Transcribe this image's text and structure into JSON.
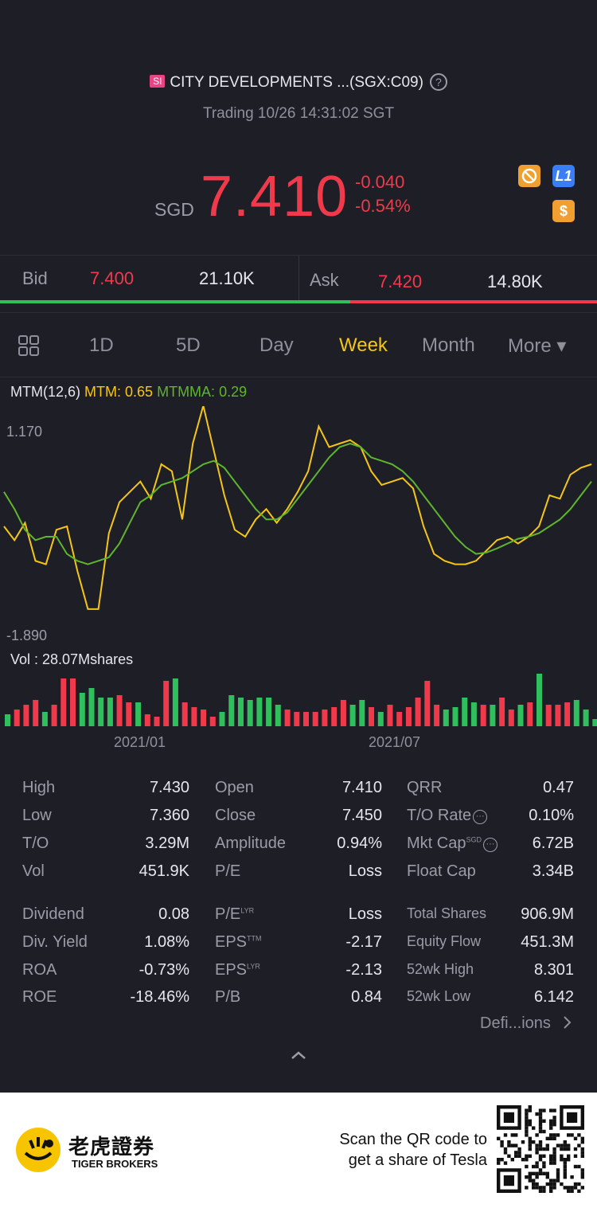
{
  "header": {
    "exchange_badge": "SI",
    "title": "CITY DEVELOPMENTS ...(SGX:C09)",
    "help_glyph": "?",
    "trading_status": "Trading 10/26 14:31:02 SGT"
  },
  "quote": {
    "currency": "SGD",
    "price": "7.410",
    "change": "-0.040",
    "change_pct": "-0.54%",
    "badges": {
      "l1": "L1",
      "dollar": "$"
    }
  },
  "bid_ask": {
    "bid_label": "Bid",
    "bid_price": "7.400",
    "bid_size": "21.10K",
    "ask_label": "Ask",
    "ask_price": "7.420",
    "ask_size": "14.80K",
    "bid_fraction": 0.587
  },
  "tabs": [
    {
      "label": "1D",
      "active": false
    },
    {
      "label": "5D",
      "active": false
    },
    {
      "label": "Day",
      "active": false
    },
    {
      "label": "Week",
      "active": true
    },
    {
      "label": "Month",
      "active": false
    },
    {
      "label": "More ▾",
      "active": false
    }
  ],
  "indicator": {
    "name": "MTM(12,6)",
    "mtm_text": "MTM: 0.65",
    "mtmma_text": "MTMMA: 0.29",
    "y_max_label": "1.170",
    "y_min_label": "-1.890",
    "volume_label": "Vol  : 28.07Mshares",
    "date_labels": [
      "2021/01",
      "2021/07"
    ],
    "colors": {
      "mtm": "#f5c518",
      "mtmma": "#5fb52c",
      "up": "#2fbf5c",
      "down": "#f03a4c"
    }
  },
  "chart_data": {
    "type": "line",
    "series": [
      {
        "name": "MTM",
        "values": [
          -0.4,
          -0.6,
          -0.35,
          -0.9,
          -0.95,
          -0.45,
          -0.4,
          -1.05,
          -1.6,
          -1.6,
          -0.5,
          -0.05,
          0.1,
          0.25,
          0.0,
          0.5,
          0.4,
          -0.3,
          0.8,
          1.35,
          0.7,
          0.05,
          -0.45,
          -0.55,
          -0.3,
          -0.15,
          -0.35,
          -0.15,
          0.1,
          0.4,
          1.05,
          0.75,
          0.8,
          0.85,
          0.75,
          0.4,
          0.2,
          0.25,
          0.3,
          0.15,
          -0.4,
          -0.8,
          -0.9,
          -0.95,
          -0.95,
          -0.9,
          -0.75,
          -0.6,
          -0.55,
          -0.65,
          -0.55,
          -0.4,
          0.05,
          0.0,
          0.35,
          0.45,
          0.5
        ]
      },
      {
        "name": "MTMMA",
        "values": [
          0.1,
          -0.15,
          -0.45,
          -0.6,
          -0.55,
          -0.55,
          -0.8,
          -0.9,
          -0.95,
          -0.9,
          -0.85,
          -0.65,
          -0.35,
          -0.05,
          0.05,
          0.2,
          0.25,
          0.3,
          0.4,
          0.5,
          0.55,
          0.45,
          0.25,
          0.05,
          -0.15,
          -0.3,
          -0.3,
          -0.2,
          0.0,
          0.2,
          0.4,
          0.6,
          0.75,
          0.8,
          0.75,
          0.6,
          0.55,
          0.5,
          0.4,
          0.25,
          0.05,
          -0.15,
          -0.35,
          -0.55,
          -0.7,
          -0.8,
          -0.78,
          -0.72,
          -0.65,
          -0.58,
          -0.55,
          -0.5,
          -0.4,
          -0.3,
          -0.15,
          0.05,
          0.25
        ]
      }
    ],
    "volume": {
      "values": [
        0.25,
        0.35,
        0.45,
        0.55,
        0.3,
        0.45,
        1.0,
        1.0,
        0.7,
        0.8,
        0.6,
        0.6,
        0.65,
        0.5,
        0.5,
        0.25,
        0.2,
        0.95,
        1.0,
        0.5,
        0.4,
        0.35,
        0.2,
        0.3,
        0.65,
        0.6,
        0.55,
        0.6,
        0.6,
        0.45,
        0.35,
        0.3,
        0.3,
        0.3,
        0.35,
        0.4,
        0.55,
        0.45,
        0.55,
        0.4,
        0.3,
        0.45,
        0.3,
        0.4,
        0.6,
        0.95,
        0.45,
        0.35,
        0.4,
        0.6,
        0.5,
        0.45,
        0.45,
        0.6,
        0.35,
        0.45,
        0.5,
        1.1,
        0.45,
        0.45,
        0.5,
        0.55,
        0.35,
        0.15
      ],
      "direction": [
        "up",
        "down",
        "down",
        "down",
        "up",
        "down",
        "down",
        "down",
        "up",
        "up",
        "up",
        "up",
        "down",
        "down",
        "up",
        "down",
        "down",
        "down",
        "up",
        "down",
        "down",
        "down",
        "down",
        "up",
        "up",
        "up",
        "up",
        "up",
        "up",
        "up",
        "down",
        "down",
        "down",
        "down",
        "down",
        "down",
        "down",
        "up",
        "up",
        "down",
        "up",
        "down",
        "down",
        "down",
        "down",
        "down",
        "down",
        "up",
        "up",
        "up",
        "up",
        "down",
        "up",
        "down",
        "down",
        "up",
        "down",
        "up",
        "down",
        "down",
        "down",
        "up",
        "up",
        "up"
      ]
    }
  },
  "stats": {
    "col1": [
      {
        "label": "High",
        "value": "7.430"
      },
      {
        "label": "Low",
        "value": "7.360"
      },
      {
        "label": "T/O",
        "value": "3.29M"
      },
      {
        "label": "Vol",
        "value": "451.9K"
      },
      {
        "label": "Dividend",
        "value": "0.08"
      },
      {
        "label": "Div. Yield",
        "value": "1.08%"
      },
      {
        "label": "ROA",
        "value": "-0.73%"
      },
      {
        "label": "ROE",
        "value": "-18.46%"
      }
    ],
    "col2": [
      {
        "label": "Open",
        "value": "7.410"
      },
      {
        "label": "Close",
        "value": "7.450"
      },
      {
        "label": "Amplitude",
        "value": "0.94%"
      },
      {
        "label": "P/E",
        "value": "Loss"
      },
      {
        "label": "P/E",
        "sup": "LYR",
        "value": "Loss"
      },
      {
        "label": "EPS",
        "sup": "TTM",
        "value": "-2.17"
      },
      {
        "label": "EPS",
        "sup": "LYR",
        "value": "-2.13"
      },
      {
        "label": "P/B",
        "value": "0.84"
      }
    ],
    "col3": [
      {
        "label": "QRR",
        "value": "0.47"
      },
      {
        "label": "T/O Rate",
        "value": "0.10%"
      },
      {
        "label": "Mkt Cap",
        "sup": "SGD",
        "value": "6.72B"
      },
      {
        "label": "Float Cap",
        "value": "3.34B"
      },
      {
        "label": "Total Shares",
        "value": "906.9M"
      },
      {
        "label": "Equity Flow",
        "value": "451.3M"
      },
      {
        "label": "52wk High",
        "value": "8.301"
      },
      {
        "label": "52wk Low",
        "value": "6.142"
      }
    ],
    "definitions_link": "Defi...ions"
  },
  "footer": {
    "brand_cn": "老虎證券",
    "brand_en": "TIGER BROKERS",
    "scan_line1": "Scan the QR code to",
    "scan_line2": "get a share of Tesla"
  }
}
